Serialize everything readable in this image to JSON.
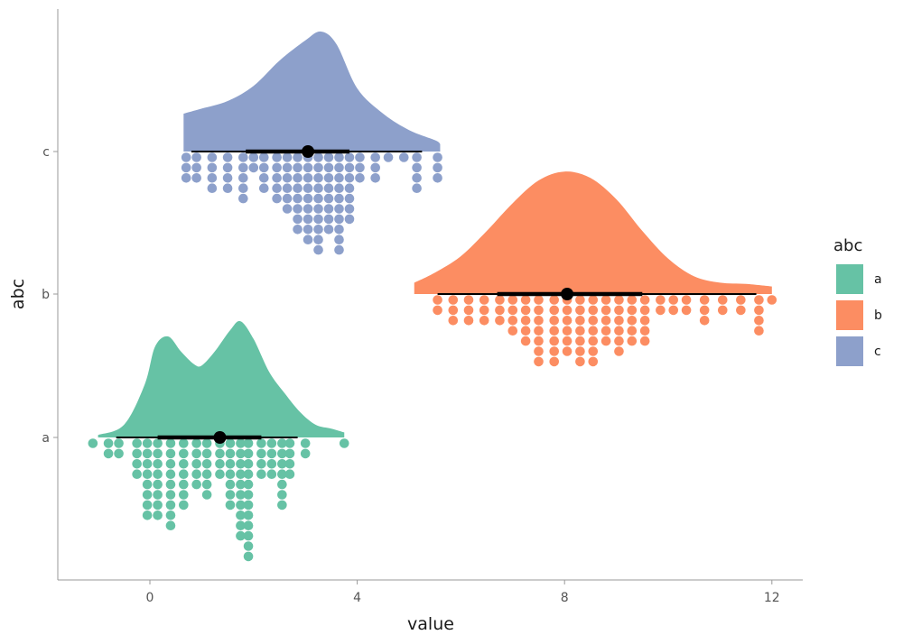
{
  "chart_data": {
    "type": "raincloud",
    "title": "",
    "xlabel": "value",
    "ylabel": "abc",
    "xlim": [
      -1.75,
      12.6
    ],
    "x_ticks": [
      "0",
      "4",
      "8",
      "12"
    ],
    "y_categories": [
      "a",
      "b",
      "c"
    ],
    "legend": {
      "title": "abc",
      "position": "right",
      "entries": [
        "a",
        "b",
        "c"
      ]
    },
    "grid": false,
    "groups": [
      {
        "name": "a",
        "color": "#66C2A5",
        "density": [
          [
            -1.0,
            0.02
          ],
          [
            -0.5,
            0.1
          ],
          [
            -0.1,
            0.42
          ],
          [
            0.1,
            0.72
          ],
          [
            0.35,
            0.8
          ],
          [
            0.6,
            0.68
          ],
          [
            0.85,
            0.58
          ],
          [
            1.0,
            0.57
          ],
          [
            1.25,
            0.68
          ],
          [
            1.55,
            0.85
          ],
          [
            1.75,
            0.92
          ],
          [
            2.0,
            0.78
          ],
          [
            2.3,
            0.52
          ],
          [
            2.6,
            0.35
          ],
          [
            2.9,
            0.2
          ],
          [
            3.2,
            0.1
          ],
          [
            3.5,
            0.07
          ],
          [
            3.75,
            0.04
          ]
        ],
        "dot_stacks": [
          [
            -1.1,
            1
          ],
          [
            -0.8,
            2
          ],
          [
            -0.6,
            2
          ],
          [
            -0.25,
            4
          ],
          [
            -0.05,
            8
          ],
          [
            0.15,
            8
          ],
          [
            0.4,
            9
          ],
          [
            0.65,
            7
          ],
          [
            0.9,
            5
          ],
          [
            1.1,
            6
          ],
          [
            1.35,
            4
          ],
          [
            1.55,
            7
          ],
          [
            1.75,
            10
          ],
          [
            1.9,
            12
          ],
          [
            2.15,
            4
          ],
          [
            2.35,
            4
          ],
          [
            2.55,
            7
          ],
          [
            2.7,
            4
          ],
          [
            3.0,
            2
          ],
          [
            3.75,
            1
          ]
        ],
        "median": 1.35,
        "interval_66": [
          0.15,
          2.15
        ],
        "interval_95": [
          -0.65,
          2.85
        ]
      },
      {
        "name": "b",
        "color": "#FC8D62",
        "density": [
          [
            5.1,
            0.09
          ],
          [
            5.5,
            0.17
          ],
          [
            6.0,
            0.3
          ],
          [
            6.5,
            0.5
          ],
          [
            7.0,
            0.72
          ],
          [
            7.5,
            0.9
          ],
          [
            8.0,
            0.97
          ],
          [
            8.5,
            0.92
          ],
          [
            9.0,
            0.75
          ],
          [
            9.5,
            0.5
          ],
          [
            10.0,
            0.28
          ],
          [
            10.5,
            0.14
          ],
          [
            11.0,
            0.09
          ],
          [
            11.5,
            0.08
          ],
          [
            12.0,
            0.06
          ]
        ],
        "dot_stacks": [
          [
            5.55,
            2
          ],
          [
            5.85,
            3
          ],
          [
            6.15,
            3
          ],
          [
            6.45,
            3
          ],
          [
            6.75,
            3
          ],
          [
            7.0,
            4
          ],
          [
            7.25,
            5
          ],
          [
            7.5,
            7
          ],
          [
            7.8,
            7
          ],
          [
            8.05,
            6
          ],
          [
            8.3,
            7
          ],
          [
            8.55,
            7
          ],
          [
            8.8,
            5
          ],
          [
            9.05,
            6
          ],
          [
            9.3,
            5
          ],
          [
            9.55,
            5
          ],
          [
            9.85,
            2
          ],
          [
            10.1,
            2
          ],
          [
            10.35,
            2
          ],
          [
            10.7,
            3
          ],
          [
            11.05,
            2
          ],
          [
            11.4,
            2
          ],
          [
            11.75,
            4
          ],
          [
            12.0,
            1
          ]
        ],
        "median": 8.05,
        "interval_66": [
          6.7,
          9.5
        ],
        "interval_95": [
          5.55,
          11.7
        ]
      },
      {
        "name": "c",
        "color": "#8DA0CB",
        "density": [
          [
            0.65,
            0.3
          ],
          [
            1.0,
            0.34
          ],
          [
            1.5,
            0.4
          ],
          [
            2.0,
            0.52
          ],
          [
            2.5,
            0.72
          ],
          [
            3.0,
            0.88
          ],
          [
            3.3,
            0.95
          ],
          [
            3.6,
            0.85
          ],
          [
            4.0,
            0.5
          ],
          [
            4.5,
            0.3
          ],
          [
            5.0,
            0.17
          ],
          [
            5.5,
            0.09
          ],
          [
            5.6,
            0.06
          ]
        ],
        "dot_stacks": [
          [
            0.7,
            3
          ],
          [
            0.9,
            3
          ],
          [
            1.2,
            4
          ],
          [
            1.5,
            4
          ],
          [
            1.8,
            5
          ],
          [
            2.0,
            2
          ],
          [
            2.2,
            4
          ],
          [
            2.45,
            5
          ],
          [
            2.65,
            6
          ],
          [
            2.85,
            8
          ],
          [
            3.05,
            9
          ],
          [
            3.25,
            10
          ],
          [
            3.45,
            8
          ],
          [
            3.65,
            10
          ],
          [
            3.85,
            7
          ],
          [
            4.05,
            3
          ],
          [
            4.35,
            3
          ],
          [
            4.6,
            1
          ],
          [
            4.9,
            1
          ],
          [
            5.15,
            4
          ],
          [
            5.55,
            3
          ]
        ],
        "median": 3.05,
        "interval_66": [
          1.85,
          3.85
        ],
        "interval_95": [
          0.8,
          5.25
        ]
      }
    ]
  }
}
